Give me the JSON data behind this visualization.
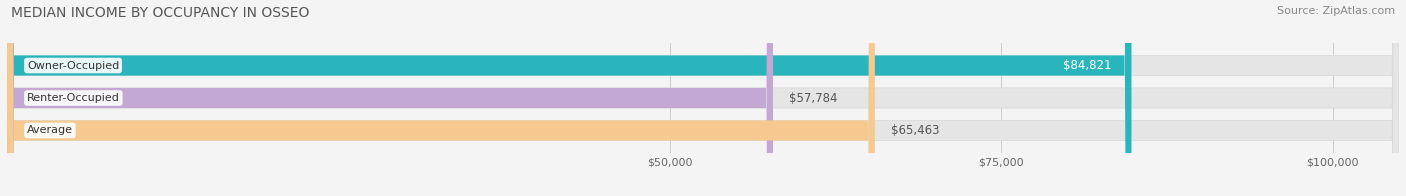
{
  "title": "MEDIAN INCOME BY OCCUPANCY IN OSSEO",
  "source": "Source: ZipAtlas.com",
  "categories": [
    "Owner-Occupied",
    "Renter-Occupied",
    "Average"
  ],
  "values": [
    84821,
    57784,
    65463
  ],
  "bar_colors": [
    "#2ab5bc",
    "#c4a8d4",
    "#f5c990"
  ],
  "label_texts": [
    "$84,821",
    "$57,784",
    "$65,463"
  ],
  "label_inside": [
    true,
    false,
    false
  ],
  "label_colors_inside": [
    "white",
    "#666666",
    "#666666"
  ],
  "xlim": [
    0,
    105000
  ],
  "xticks": [
    50000,
    75000,
    100000
  ],
  "xtick_labels": [
    "$50,000",
    "$75,000",
    "$100,000"
  ],
  "background_color": "#f4f4f4",
  "bar_bg_color": "#e5e5e5",
  "bar_bg_edge_color": "#d8d8d8",
  "title_fontsize": 10,
  "source_fontsize": 8,
  "label_fontsize": 8.5,
  "tick_fontsize": 8,
  "cat_fontsize": 8,
  "bar_height": 0.62,
  "bar_gap": 0.38,
  "figsize": [
    14.06,
    1.96
  ],
  "dpi": 100
}
